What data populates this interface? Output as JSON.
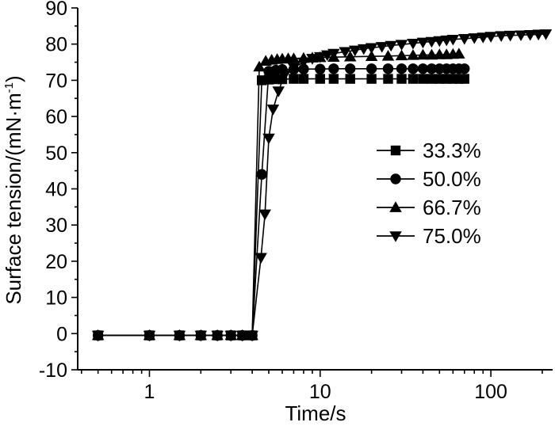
{
  "chart_data": {
    "type": "line",
    "xlabel": "Time/s",
    "ylabel_main": "Surface tension/(mN·m",
    "ylabel_sup": "-1",
    "ylabel_close": ")",
    "xscale": "log",
    "xlim": [
      0.38,
      230
    ],
    "ylim": [
      -10,
      90
    ],
    "xticks": [
      {
        "value": 1,
        "label": "1"
      },
      {
        "value": 10,
        "label": "10"
      },
      {
        "value": 100,
        "label": "100"
      }
    ],
    "yticks": [
      {
        "value": -10,
        "label": "-10"
      },
      {
        "value": 0,
        "label": "0"
      },
      {
        "value": 10,
        "label": "10"
      },
      {
        "value": 20,
        "label": "20"
      },
      {
        "value": 30,
        "label": "30"
      },
      {
        "value": 40,
        "label": "40"
      },
      {
        "value": 50,
        "label": "50"
      },
      {
        "value": 60,
        "label": "60"
      },
      {
        "value": 70,
        "label": "70"
      },
      {
        "value": 80,
        "label": "80"
      },
      {
        "value": 90,
        "label": "90"
      }
    ],
    "grid": false,
    "legend_position": "right",
    "series": [
      {
        "name": "33.3%",
        "marker": "square",
        "x": [
          0.5,
          1,
          1.5,
          2,
          2.5,
          3,
          3.5,
          4,
          4.55,
          5,
          5.5,
          6,
          7,
          8,
          10,
          12,
          15,
          20,
          25,
          30,
          35,
          40,
          45,
          50,
          55,
          60,
          65,
          70
        ],
        "y": [
          -0.5,
          -0.5,
          -0.5,
          -0.5,
          -0.5,
          -0.5,
          -0.5,
          -0.5,
          70,
          70.2,
          70.3,
          70.3,
          70.4,
          70.4,
          70.4,
          70.4,
          70.4,
          70.4,
          70.4,
          70.4,
          70.4,
          70.4,
          70.4,
          70.4,
          70.4,
          70.4,
          70.4,
          70.4
        ]
      },
      {
        "name": "50.0%",
        "marker": "circle",
        "x": [
          0.5,
          1,
          1.5,
          2,
          2.5,
          3,
          3.5,
          4,
          4.55,
          5,
          5.5,
          6,
          7,
          8,
          10,
          12,
          15,
          20,
          25,
          30,
          35,
          40,
          45,
          50,
          55,
          60,
          65,
          70
        ],
        "y": [
          -0.5,
          -0.5,
          -0.5,
          -0.5,
          -0.5,
          -0.5,
          -0.5,
          -0.5,
          44,
          72.5,
          72.8,
          73,
          73,
          73.1,
          73.1,
          73.2,
          73.2,
          73.2,
          73.2,
          73.2,
          73.2,
          73.2,
          73.2,
          73.2,
          73.2,
          73.2,
          73.2,
          73.2
        ]
      },
      {
        "name": "66.7%",
        "marker": "triangle-up",
        "x": [
          0.5,
          1,
          1.5,
          2,
          2.5,
          3,
          3.5,
          4,
          4.4,
          4.8,
          5.2,
          5.6,
          6,
          6.5,
          7,
          8,
          9,
          10,
          12,
          15,
          20,
          25,
          30,
          35,
          40,
          45,
          50,
          55,
          60,
          65
        ],
        "y": [
          -0.5,
          -0.5,
          -0.5,
          -0.5,
          -0.5,
          -0.5,
          -0.5,
          -0.5,
          73.7,
          75.3,
          75.6,
          75.8,
          75.9,
          76,
          76,
          76.1,
          76.2,
          76.3,
          76.4,
          76.5,
          76.6,
          76.7,
          76.8,
          76.9,
          77,
          77,
          77.1,
          77.1,
          77.2,
          77.3
        ]
      },
      {
        "name": "75.0%",
        "marker": "triangle-down",
        "x": [
          0.5,
          1,
          1.5,
          2,
          2.5,
          3,
          3.5,
          4,
          4.5,
          4.75,
          5,
          5.3,
          5.7,
          6.2,
          7,
          8,
          9,
          10,
          11,
          12,
          14,
          16,
          18,
          20,
          23,
          26,
          30,
          35,
          40,
          45,
          50,
          55,
          60,
          70,
          80,
          90,
          100,
          115,
          130,
          150,
          170,
          190,
          210
        ],
        "y": [
          -0.5,
          -0.5,
          -0.5,
          -0.5,
          -0.5,
          -0.5,
          -0.5,
          -0.5,
          21,
          33,
          54,
          62,
          67,
          71.5,
          73.5,
          75,
          76,
          76.5,
          77,
          77.4,
          77.9,
          78.3,
          78.7,
          79,
          79.3,
          79.6,
          79.9,
          80.2,
          80.5,
          80.7,
          80.9,
          81.1,
          81.3,
          81.5,
          81.7,
          81.9,
          82.1,
          82.3,
          82.4,
          82.5,
          82.6,
          82.7,
          82.8
        ]
      }
    ]
  }
}
